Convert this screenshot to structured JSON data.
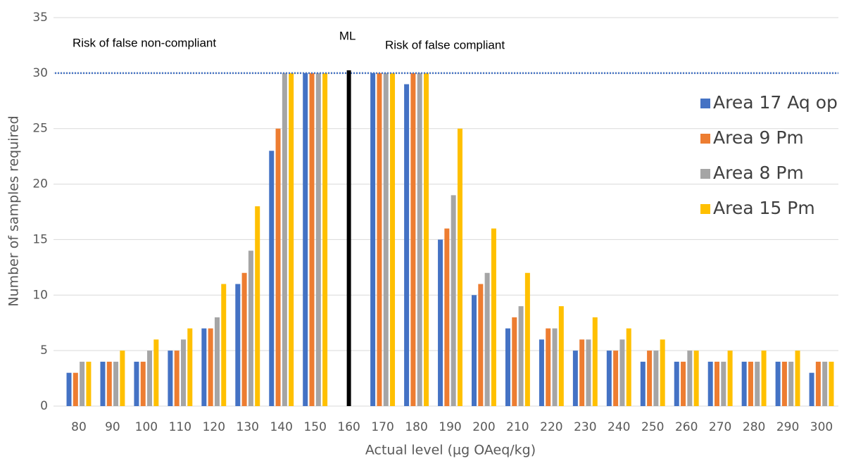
{
  "chart_data": {
    "type": "bar",
    "x_label": "Actual level (µg OAeq/kg)",
    "y_label": "Number of samples required",
    "categories": [
      "80",
      "90",
      "100",
      "110",
      "120",
      "130",
      "140",
      "150",
      "160",
      "170",
      "180",
      "190",
      "200",
      "210",
      "220",
      "230",
      "240",
      "250",
      "260",
      "270",
      "280",
      "290",
      "300"
    ],
    "series": [
      {
        "name": "Area 17 Aq op",
        "color": "#4472c4",
        "values": [
          3,
          4,
          4,
          5,
          7,
          11,
          23,
          30,
          null,
          30,
          29,
          15,
          10,
          7,
          6,
          5,
          5,
          4,
          4,
          4,
          4,
          4,
          3
        ]
      },
      {
        "name": "Area 9 Pm",
        "color": "#ed7d31",
        "values": [
          3,
          4,
          4,
          5,
          7,
          12,
          25,
          30,
          null,
          30,
          30,
          16,
          11,
          8,
          7,
          6,
          5,
          5,
          4,
          4,
          4,
          4,
          4
        ]
      },
      {
        "name": "Area 8 Pm",
        "color": "#a5a5a5",
        "values": [
          4,
          4,
          5,
          6,
          8,
          14,
          30,
          30,
          null,
          30,
          30,
          19,
          12,
          9,
          7,
          6,
          6,
          5,
          5,
          4,
          4,
          4,
          4
        ]
      },
      {
        "name": "Area 15 Pm",
        "color": "#ffc000",
        "values": [
          4,
          5,
          6,
          7,
          11,
          18,
          30,
          30,
          null,
          30,
          30,
          25,
          16,
          12,
          9,
          8,
          7,
          6,
          5,
          5,
          5,
          5,
          4
        ]
      }
    ],
    "ylim": [
      0,
      35
    ],
    "yticks": [
      0,
      5,
      10,
      15,
      20,
      25,
      30,
      35
    ],
    "grid": true,
    "legend": "right",
    "reference_line": {
      "y": 30,
      "color": "#4472c4"
    },
    "ml_line": {
      "x": "160",
      "label": "ML",
      "color": "#000000"
    },
    "annotations": [
      "Risk of false non-compliant",
      "Risk of false compliant"
    ]
  }
}
